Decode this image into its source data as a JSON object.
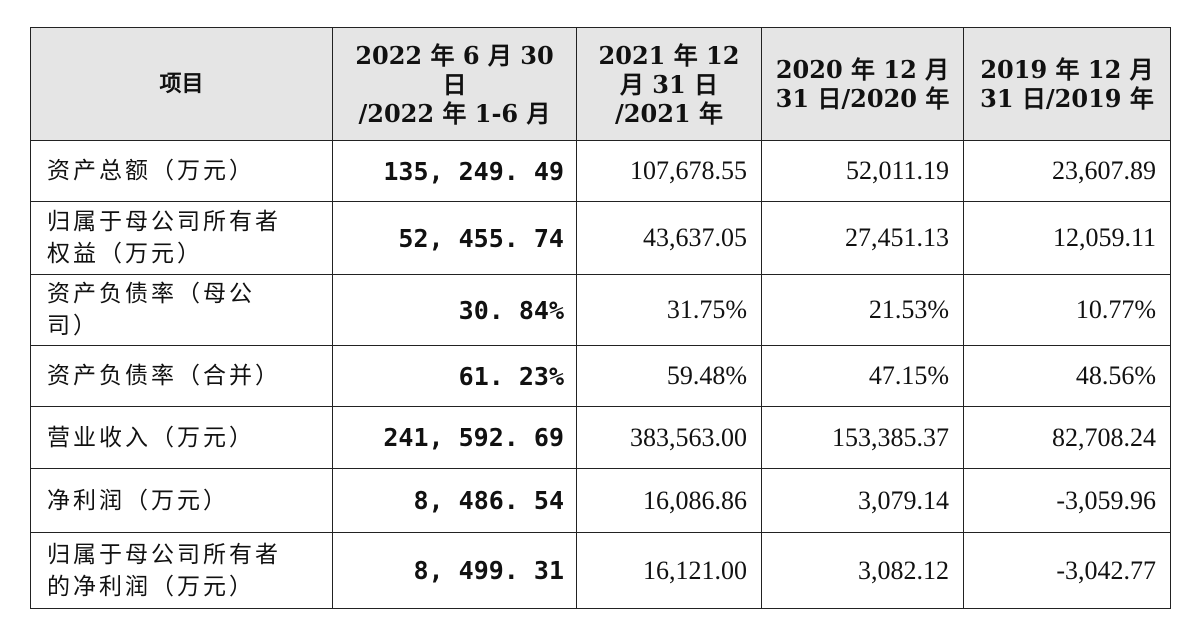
{
  "table": {
    "headers": [
      "项目",
      "2022 年 6 月 30 日\n/2022 年 1-6 月",
      "2021 年 12\n月 31 日\n/2021 年",
      "2020 年 12 月\n31 日/2020 年",
      "2019 年 12 月\n31 日/2019 年"
    ],
    "rows": [
      {
        "label": "资产总额（万元）",
        "values": [
          "135, 249. 49",
          "107,678.55",
          "52,011.19",
          "23,607.89"
        ]
      },
      {
        "label": "归属于母公司所有者\n权益（万元）",
        "values": [
          "52, 455. 74",
          "43,637.05",
          "27,451.13",
          "12,059.11"
        ]
      },
      {
        "label": "资产负债率（母公\n司）",
        "values": [
          "30. 84%",
          "31.75%",
          "21.53%",
          "10.77%"
        ]
      },
      {
        "label": "资产负债率（合并）",
        "values": [
          "61. 23%",
          "59.48%",
          "47.15%",
          "48.56%"
        ]
      },
      {
        "label": "营业收入（万元）",
        "values": [
          "241, 592. 69",
          "383,563.00",
          "153,385.37",
          "82,708.24"
        ]
      },
      {
        "label": "净利润（万元）",
        "values": [
          "8, 486. 54",
          "16,086.86",
          "3,079.14",
          "-3,059.96"
        ]
      },
      {
        "label": "归属于母公司所有者\n的净利润（万元）",
        "values": [
          "8, 499. 31",
          "16,121.00",
          "3,082.12",
          "-3,042.77"
        ]
      }
    ]
  }
}
